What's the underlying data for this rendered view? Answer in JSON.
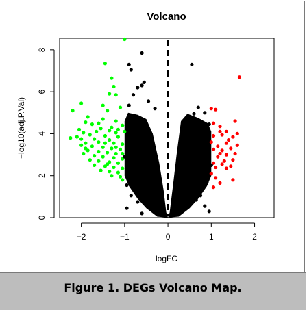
{
  "figure": {
    "caption": "Figure 1. DEGs Volcano Map."
  },
  "chart_data": {
    "type": "scatter",
    "title": "Volcano",
    "xlabel": "logFC",
    "ylabel": "−log10(adj.P.Val)",
    "xlim": [
      -2.5,
      2.45
    ],
    "ylim": [
      0,
      8.55
    ],
    "x_ticks": [
      "−2",
      "−1",
      "0",
      "1",
      "2"
    ],
    "y_ticks": [
      "0",
      "2",
      "4",
      "6",
      "8"
    ],
    "x_tick_values": [
      -2,
      -1,
      0,
      1,
      2
    ],
    "y_tick_values": [
      0,
      2,
      4,
      6,
      8
    ],
    "grid": false,
    "legend": "none",
    "reference_line": {
      "x": 0,
      "style": "dashed",
      "color": "#000000"
    },
    "colors": {
      "down": "#00ff00",
      "up": "#ff0000",
      "ns": "#000000"
    },
    "series": [
      {
        "color": "#00ff00",
        "points": [
          [
            -1.0,
            8.5
          ],
          [
            -1.45,
            7.35
          ],
          [
            -1.3,
            6.65
          ],
          [
            -1.25,
            6.25
          ],
          [
            -1.35,
            5.9
          ],
          [
            -1.2,
            5.85
          ],
          [
            -2.0,
            5.45
          ],
          [
            -1.5,
            5.35
          ],
          [
            -1.4,
            5.1
          ],
          [
            -2.2,
            5.1
          ],
          [
            -1.1,
            5.25
          ],
          [
            -1.85,
            4.8
          ],
          [
            -1.9,
            4.55
          ],
          [
            -1.6,
            4.5
          ],
          [
            -1.75,
            4.45
          ],
          [
            -1.55,
            4.25
          ],
          [
            -1.3,
            4.3
          ],
          [
            -1.05,
            4.4
          ],
          [
            -2.05,
            4.2
          ],
          [
            -1.95,
            4.05
          ],
          [
            -1.2,
            4.05
          ],
          [
            -2.1,
            3.85
          ],
          [
            -1.8,
            3.95
          ],
          [
            -1.45,
            3.9
          ],
          [
            -1.15,
            3.85
          ],
          [
            -2.25,
            3.8
          ],
          [
            -1.7,
            3.75
          ],
          [
            -1.35,
            3.7
          ],
          [
            -1.9,
            3.55
          ],
          [
            -1.6,
            3.6
          ],
          [
            -1.25,
            3.55
          ],
          [
            -1.05,
            3.5
          ],
          [
            -2.0,
            3.45
          ],
          [
            -1.75,
            3.4
          ],
          [
            -1.5,
            3.35
          ],
          [
            -1.3,
            3.3
          ],
          [
            -1.1,
            3.25
          ],
          [
            -1.85,
            3.2
          ],
          [
            -1.6,
            3.15
          ],
          [
            -1.4,
            3.1
          ],
          [
            -1.2,
            3.05
          ],
          [
            -1.95,
            3.05
          ],
          [
            -1.7,
            2.95
          ],
          [
            -1.5,
            2.9
          ],
          [
            -1.25,
            2.85
          ],
          [
            -1.05,
            2.8
          ],
          [
            -1.8,
            2.75
          ],
          [
            -1.6,
            2.7
          ],
          [
            -1.35,
            2.65
          ],
          [
            -1.15,
            2.6
          ],
          [
            -1.7,
            2.5
          ],
          [
            -1.45,
            2.45
          ],
          [
            -1.25,
            2.4
          ],
          [
            -1.05,
            2.35
          ],
          [
            -1.55,
            2.25
          ],
          [
            -1.35,
            2.2
          ],
          [
            -1.15,
            2.15
          ],
          [
            -1.3,
            2.0
          ],
          [
            -1.1,
            1.95
          ],
          [
            -1.05,
            1.8
          ],
          [
            -1.5,
            4.7
          ],
          [
            -1.2,
            4.6
          ],
          [
            -1.65,
            4.1
          ],
          [
            -1.35,
            4.15
          ],
          [
            -1.15,
            4.2
          ],
          [
            -1.45,
            3.55
          ],
          [
            -1.0,
            4.1
          ],
          [
            -1.05,
            3.05
          ],
          [
            -1.2,
            3.35
          ],
          [
            -1.4,
            2.55
          ],
          [
            -1.9,
            3.3
          ],
          [
            -2.0,
            3.75
          ]
        ]
      },
      {
        "color": "#ff0000",
        "points": [
          [
            1.65,
            6.7
          ],
          [
            1.0,
            5.2
          ],
          [
            1.1,
            5.15
          ],
          [
            1.55,
            4.6
          ],
          [
            1.05,
            4.5
          ],
          [
            1.2,
            4.35
          ],
          [
            1.35,
            4.1
          ],
          [
            1.25,
            3.95
          ],
          [
            1.5,
            3.85
          ],
          [
            1.05,
            3.9
          ],
          [
            1.6,
            3.45
          ],
          [
            1.35,
            3.55
          ],
          [
            1.15,
            3.4
          ],
          [
            1.45,
            3.3
          ],
          [
            1.25,
            3.2
          ],
          [
            1.05,
            3.25
          ],
          [
            1.55,
            3.05
          ],
          [
            1.35,
            3.0
          ],
          [
            1.15,
            2.9
          ],
          [
            1.5,
            2.75
          ],
          [
            1.3,
            2.7
          ],
          [
            1.05,
            2.6
          ],
          [
            1.25,
            2.55
          ],
          [
            1.45,
            2.45
          ],
          [
            1.1,
            2.4
          ],
          [
            1.0,
            2.1
          ],
          [
            1.1,
            1.9
          ],
          [
            1.5,
            1.8
          ],
          [
            1.2,
            1.65
          ],
          [
            1.05,
            1.45
          ],
          [
            1.4,
            3.7
          ],
          [
            1.6,
            4.0
          ],
          [
            1.2,
            3.05
          ],
          [
            1.35,
            2.35
          ],
          [
            1.0,
            3.6
          ],
          [
            1.2,
            4.1
          ]
        ]
      },
      {
        "color": "#000000",
        "points": [
          [
            -0.6,
            7.85
          ],
          [
            -0.9,
            7.3
          ],
          [
            -0.85,
            7.05
          ],
          [
            -0.55,
            6.45
          ],
          [
            -0.6,
            6.3
          ],
          [
            -0.7,
            6.2
          ],
          [
            -0.8,
            5.85
          ],
          [
            -0.45,
            5.55
          ],
          [
            -0.9,
            5.35
          ],
          [
            -0.3,
            5.2
          ],
          [
            0.55,
            7.3
          ],
          [
            0.7,
            5.25
          ],
          [
            0.85,
            5.0
          ],
          [
            0.95,
            4.45
          ],
          [
            0.8,
            4.3
          ],
          [
            0.6,
            4.95
          ],
          [
            0.75,
            4.15
          ],
          [
            0.9,
            1.7
          ],
          [
            -0.95,
            1.55
          ],
          [
            -0.8,
            1.35
          ],
          [
            -0.85,
            1.05
          ],
          [
            -0.7,
            0.75
          ],
          [
            -0.95,
            0.45
          ],
          [
            -0.6,
            0.2
          ],
          [
            0.75,
            1.05
          ],
          [
            0.65,
            0.85
          ],
          [
            0.85,
            0.55
          ],
          [
            0.95,
            0.3
          ],
          [
            -1.0,
            2.9
          ],
          [
            1.0,
            2.5
          ],
          [
            -0.95,
            3.6
          ],
          [
            0.95,
            3.2
          ]
        ]
      }
    ]
  }
}
